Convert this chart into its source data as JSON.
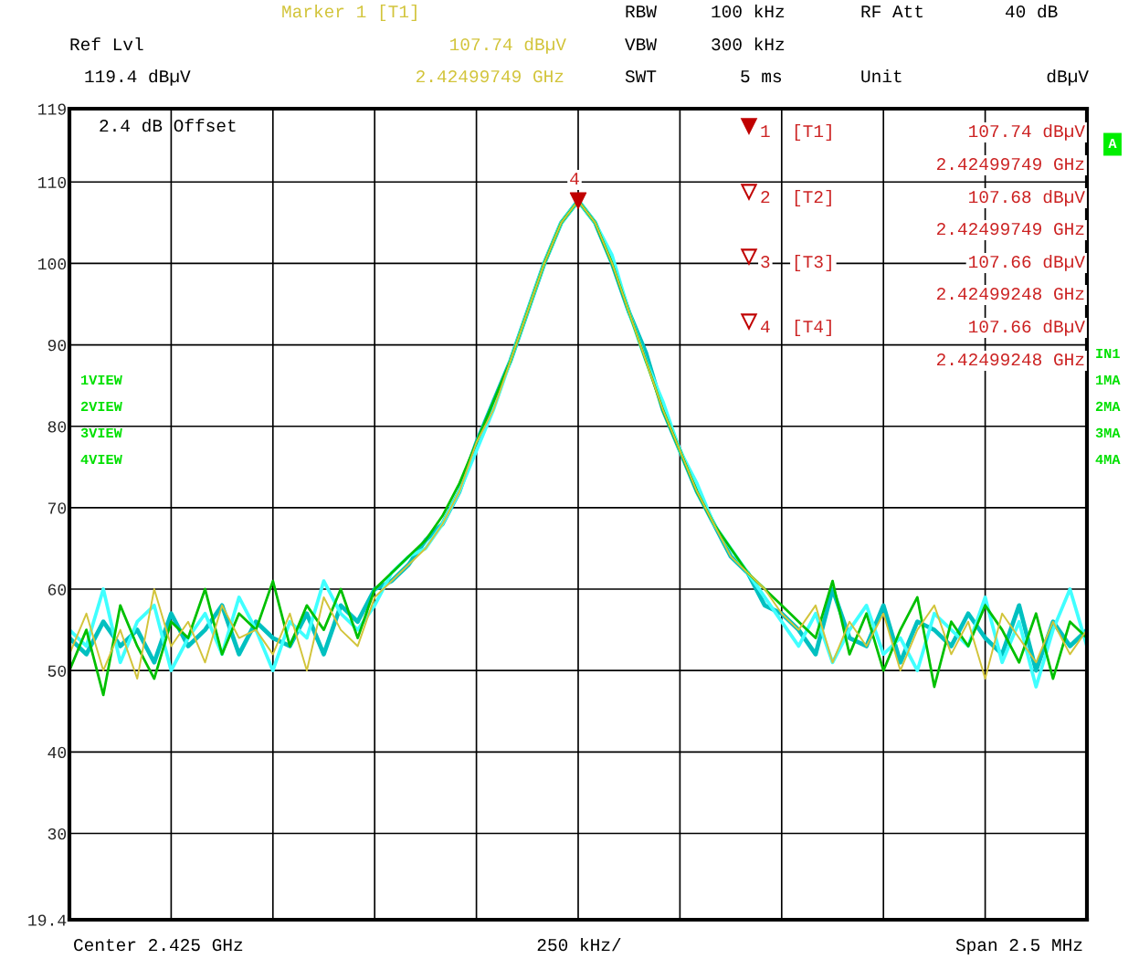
{
  "chart_data": {
    "type": "line",
    "categories": [
      null,
      null,
      null,
      null,
      null,
      null,
      null,
      null,
      null,
      null,
      null,
      null,
      null,
      null,
      null,
      null,
      null,
      null,
      null,
      null,
      null,
      null,
      null,
      null,
      null,
      null,
      null,
      null,
      null,
      null,
      null,
      null,
      null,
      null,
      null,
      null,
      null,
      null,
      null,
      null,
      null,
      null,
      null,
      null,
      null,
      null,
      null,
      null,
      null,
      null,
      null,
      null,
      null,
      null,
      null,
      null,
      null,
      null,
      null,
      null,
      null
    ],
    "series": [
      {
        "color": "#00c0c0",
        "values": [
          54,
          52,
          56,
          53,
          55,
          51,
          57,
          53,
          55,
          58,
          52,
          56,
          54,
          53,
          57,
          52,
          58,
          56,
          60,
          61,
          63,
          66,
          68,
          72,
          78,
          83,
          88,
          94,
          100,
          105,
          107.7,
          105,
          100,
          94,
          89,
          82,
          77,
          72,
          68,
          64,
          62,
          58,
          57,
          55,
          52,
          60,
          54,
          53,
          58,
          51,
          56,
          55,
          53,
          57,
          54,
          52,
          58,
          50,
          56,
          53,
          55
        ]
      },
      {
        "color": "#40ffff",
        "values": [
          55,
          53,
          60,
          51,
          56,
          58,
          50,
          54,
          57,
          52,
          59,
          55,
          50,
          56,
          54,
          61,
          57,
          55,
          58,
          62,
          64,
          65,
          68,
          72,
          77,
          82,
          88,
          94,
          100,
          105,
          107.7,
          105,
          101,
          94,
          88,
          83,
          77,
          73,
          68,
          65,
          62,
          59,
          56,
          53,
          57,
          51,
          55,
          58,
          52,
          54,
          50,
          57,
          55,
          53,
          59,
          51,
          56,
          48,
          55,
          60,
          53
        ]
      },
      {
        "color": "#00c000",
        "values": [
          50,
          55,
          47,
          58,
          53,
          49,
          56,
          54,
          60,
          52,
          57,
          55,
          61,
          53,
          58,
          55,
          60,
          54,
          60,
          62,
          64,
          66,
          69,
          73,
          78,
          83,
          88,
          94,
          100,
          105,
          107.7,
          105,
          100,
          94,
          88,
          82,
          77,
          72,
          68,
          65,
          62,
          60,
          58,
          56,
          54,
          61,
          52,
          57,
          50,
          55,
          59,
          48,
          56,
          53,
          58,
          55,
          51,
          57,
          49,
          56,
          54
        ]
      },
      {
        "color": "#d2c43a",
        "values": [
          52,
          57,
          50,
          55,
          49,
          60,
          53,
          56,
          51,
          58,
          54,
          55,
          52,
          57,
          50,
          59,
          55,
          53,
          59,
          61,
          63,
          65,
          68,
          72,
          78,
          82,
          88,
          94,
          100,
          105,
          107.7,
          105,
          100,
          94,
          88,
          82,
          77,
          72,
          68,
          64,
          62,
          60,
          57,
          55,
          58,
          51,
          56,
          53,
          57,
          50,
          55,
          58,
          52,
          56,
          49,
          57,
          54,
          51,
          56,
          52,
          55
        ]
      },
      {
        "type": "scatter",
        "marker": "triangle",
        "color": "#c00000",
        "values": [
          null,
          null,
          null,
          null,
          null,
          null,
          null,
          null,
          null,
          null,
          null,
          null,
          null,
          null,
          null,
          null,
          null,
          null,
          null,
          null,
          null,
          null,
          null,
          null,
          null,
          null,
          null,
          null,
          null,
          null,
          107.7,
          null,
          null,
          null,
          null,
          null,
          null,
          null,
          null,
          null,
          null,
          null,
          null,
          null,
          null,
          null,
          null,
          null,
          null,
          null,
          null,
          null,
          null,
          null,
          null,
          null,
          null,
          null,
          null,
          null,
          null
        ]
      }
    ],
    "ylim": [
      19.4,
      119
    ],
    "yticks": [
      19.4,
      30,
      40,
      50,
      60,
      70,
      80,
      90,
      100,
      110,
      119
    ],
    "grid": true,
    "legend": false,
    "tick_labels": "y",
    "annotations": [
      "Marker 1 [T1]",
      "Ref Lvl",
      "107.74 dBµV",
      "119.4 dBµV",
      "2.42499749 GHz",
      "RBW",
      "100 kHz",
      "RF Att",
      "40 dB",
      "VBW",
      "300 kHz",
      "SWT",
      "5 ms",
      "Unit",
      "dBµV",
      "2.4 dB Offset",
      "1",
      "[T1]",
      "107.74 dBµV",
      "2.42499749 GHz",
      "2",
      "[T2]",
      "107.68 dBµV",
      "2.42499749 GHz",
      "3",
      "[T3]",
      "107.66 dBµV",
      "2.42499248 GHz",
      "4",
      "[T4]",
      "107.66 dBµV",
      "2.42499248 GHz",
      "1VIEW",
      "2VIEW",
      "3VIEW",
      "4VIEW",
      "A",
      "IN1",
      "1MA",
      "2MA",
      "3MA",
      "4MA",
      "Center 2.425 GHz",
      "250 kHz/",
      "Span 2.5 MHz",
      "4"
    ]
  }
}
